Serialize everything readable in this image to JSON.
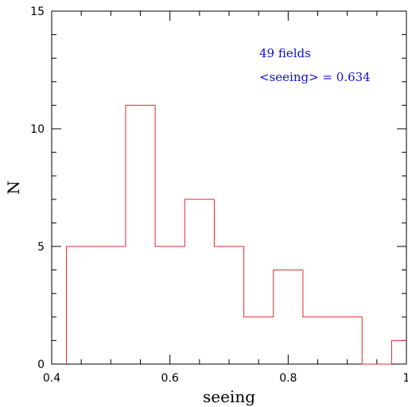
{
  "chart_data": {
    "type": "histogram",
    "xlabel": "seeing",
    "ylabel": "N",
    "xlim": [
      0.4,
      1.0
    ],
    "ylim": [
      0,
      15
    ],
    "x_ticks": [
      {
        "value": 0.4,
        "label": "0.4"
      },
      {
        "value": 0.6,
        "label": "0.6"
      },
      {
        "value": 0.8,
        "label": "0.8"
      },
      {
        "value": 1.0,
        "label": "1"
      }
    ],
    "y_ticks": [
      {
        "value": 0,
        "label": "0"
      },
      {
        "value": 5,
        "label": "5"
      },
      {
        "value": 10,
        "label": "10"
      },
      {
        "value": 15,
        "label": "15"
      }
    ],
    "x_minor_step": 0.05,
    "y_minor_step": 1,
    "bin_width": 0.05,
    "bins": [
      {
        "x0": 0.425,
        "x1": 0.475,
        "count": 5
      },
      {
        "x0": 0.475,
        "x1": 0.525,
        "count": 5
      },
      {
        "x0": 0.525,
        "x1": 0.575,
        "count": 11
      },
      {
        "x0": 0.575,
        "x1": 0.625,
        "count": 5
      },
      {
        "x0": 0.625,
        "x1": 0.675,
        "count": 7
      },
      {
        "x0": 0.675,
        "x1": 0.725,
        "count": 5
      },
      {
        "x0": 0.725,
        "x1": 0.775,
        "count": 2
      },
      {
        "x0": 0.775,
        "x1": 0.825,
        "count": 4
      },
      {
        "x0": 0.825,
        "x1": 0.875,
        "count": 2
      },
      {
        "x0": 0.875,
        "x1": 0.925,
        "count": 2
      },
      {
        "x0": 0.925,
        "x1": 0.975,
        "count": 0
      },
      {
        "x0": 0.975,
        "x1": 1.025,
        "count": 1
      }
    ],
    "series_color": "#e8262a",
    "annotations": [
      "49 fields",
      "<seeing> = 0.634"
    ],
    "annotation_color": "#1010d0",
    "grid": false
  }
}
